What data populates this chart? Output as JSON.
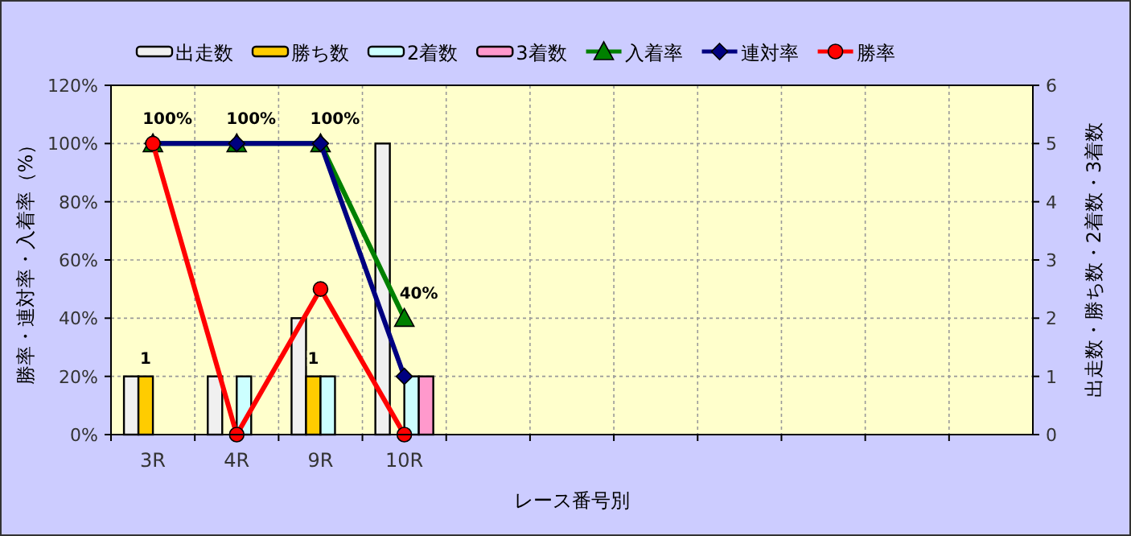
{
  "chart_data": {
    "type": "bar",
    "categories": [
      "3R",
      "4R",
      "9R",
      "10R",
      null,
      null,
      null,
      null,
      null,
      null,
      null
    ],
    "xlabel": "レース番号別",
    "ylabel": "勝率・連対率・入着率（%）",
    "y2label": "出走数・勝ち数・2着数・3着数",
    "ylim": [
      0,
      120
    ],
    "yticks": [
      {
        "value": 0,
        "label": "0%"
      },
      {
        "value": 20,
        "label": "20%"
      },
      {
        "value": 40,
        "label": "40%"
      },
      {
        "value": 60,
        "label": "60%"
      },
      {
        "value": 80,
        "label": "80%"
      },
      {
        "value": 100,
        "label": "100%"
      },
      {
        "value": 120,
        "label": "120%"
      }
    ],
    "y2lim": [
      0,
      6
    ],
    "y2ticks": [
      0,
      1,
      2,
      3,
      4,
      5,
      6
    ],
    "grid": true,
    "legend": "top",
    "series": [
      {
        "name": "出走数",
        "axis": "y2",
        "color": "#f0f0f0",
        "values": [
          1,
          1,
          2,
          5,
          null,
          null,
          null,
          null,
          null,
          null,
          null
        ]
      },
      {
        "name": "勝ち数",
        "axis": "y2",
        "color": "#ffcc00",
        "values": [
          1,
          0,
          1,
          0,
          null,
          null,
          null,
          null,
          null,
          null,
          null
        ],
        "value_labels": [
          "1",
          null,
          "1",
          null,
          null,
          null,
          null,
          null,
          null,
          null,
          null
        ]
      },
      {
        "name": "2着数",
        "axis": "y2",
        "color": "#ccffff",
        "values": [
          0,
          1,
          1,
          1,
          null,
          null,
          null,
          null,
          null,
          null,
          null
        ]
      },
      {
        "name": "3着数",
        "axis": "y2",
        "color": "#ff99cc",
        "values": [
          0,
          0,
          0,
          1,
          null,
          null,
          null,
          null,
          null,
          null,
          null
        ]
      },
      {
        "name": "入着率",
        "type": "line",
        "marker": "triangle",
        "color": "#008000",
        "values": [
          100,
          100,
          100,
          40,
          null,
          null,
          null,
          null,
          null,
          null,
          null
        ],
        "value_labels": [
          "100%",
          "100%",
          "100%",
          "40%",
          null,
          null,
          null,
          null,
          null,
          null,
          null
        ]
      },
      {
        "name": "連対率",
        "type": "line",
        "marker": "diamond",
        "color": "#000080",
        "values": [
          100,
          100,
          100,
          20,
          null,
          null,
          null,
          null,
          null,
          null,
          null
        ]
      },
      {
        "name": "勝率",
        "type": "line",
        "marker": "circle",
        "color": "#ff0000",
        "values": [
          100,
          0,
          50,
          0,
          null,
          null,
          null,
          null,
          null,
          null,
          null
        ]
      }
    ]
  }
}
